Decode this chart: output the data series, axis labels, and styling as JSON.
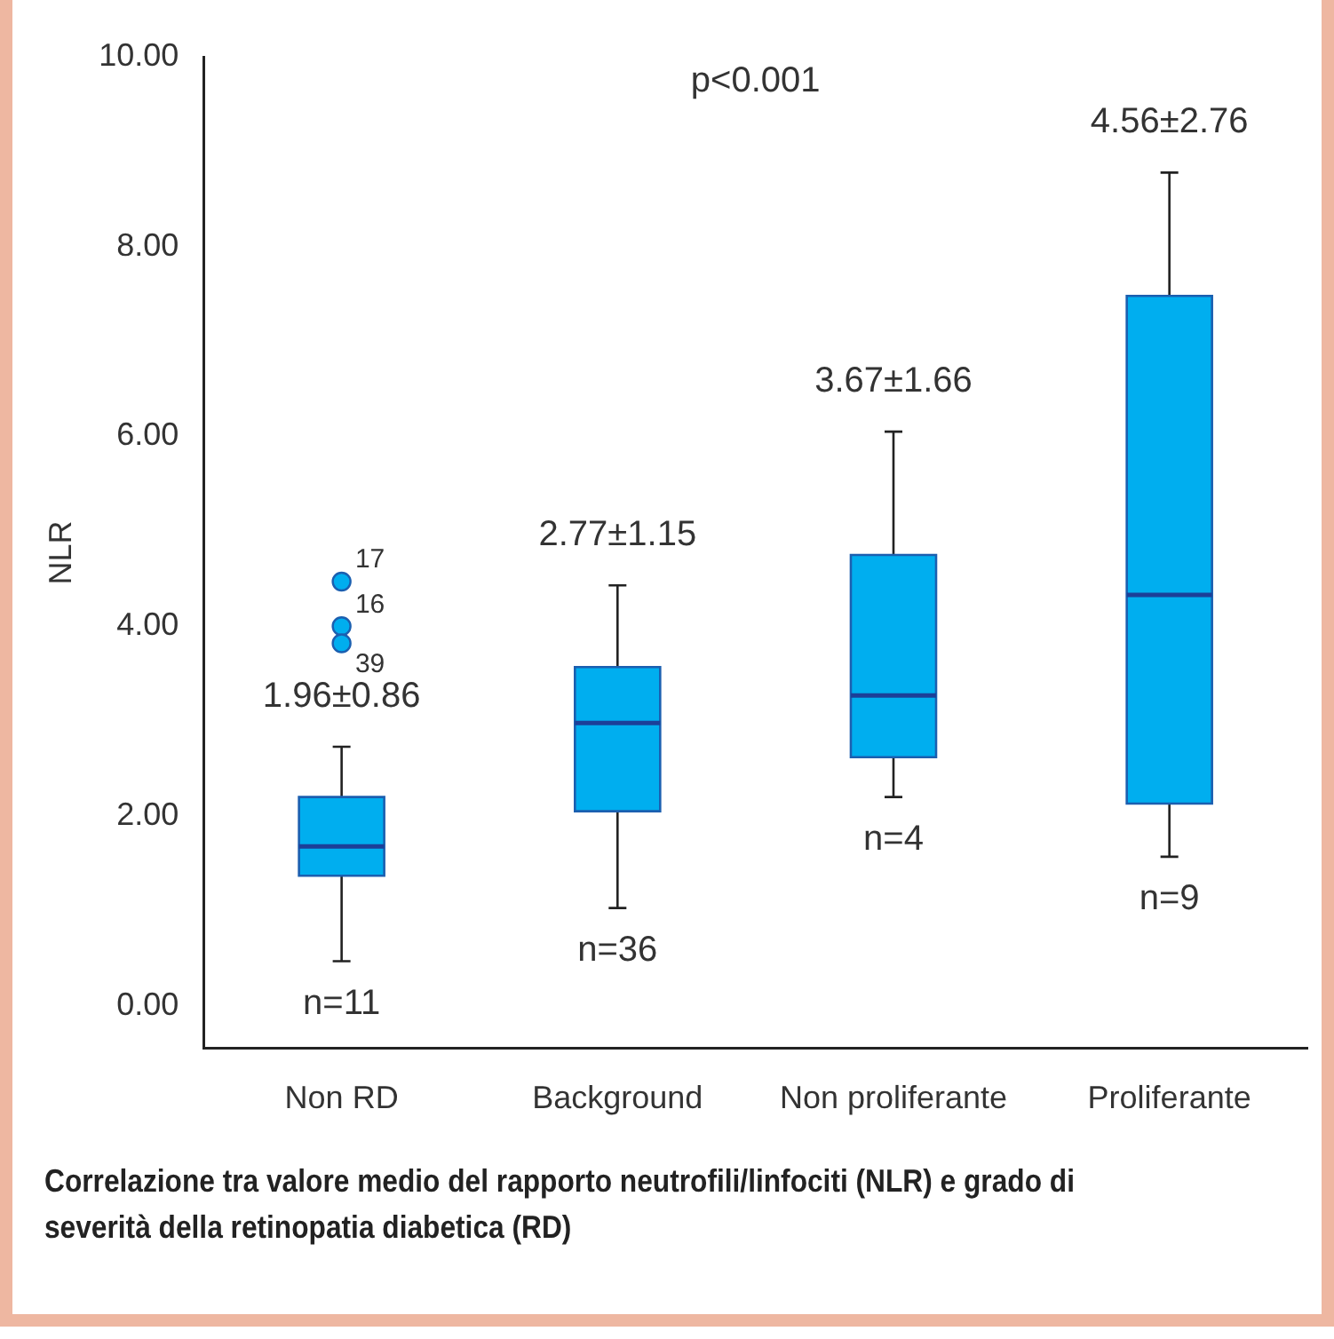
{
  "chart_data": {
    "type": "box",
    "title": "Correlazione tra valore medio del rapporto neutrofili/linfociti (NLR) e grado di severità della retinopatia diabetica (RD)",
    "ylabel": "NLR",
    "categories": [
      "Non RD",
      "Background",
      "Non proliferante",
      "Proliferante"
    ],
    "color": "#00aeef",
    "boxes": [
      {
        "low": 0.47,
        "q1": 1.37,
        "median": 1.68,
        "q3": 2.2,
        "high": 2.73
      },
      {
        "low": 1.03,
        "q1": 2.05,
        "median": 2.98,
        "q3": 3.57,
        "high": 4.43
      },
      {
        "low": 2.2,
        "q1": 2.62,
        "median": 3.27,
        "q3": 4.75,
        "high": 6.05
      },
      {
        "low": 1.57,
        "q1": 2.13,
        "median": 4.33,
        "q3": 7.48,
        "high": 8.78
      }
    ],
    "series": [
      {
        "type": "scatter",
        "color": "#00aeef",
        "x": [
          "Non RD",
          "Non RD",
          "Non RD"
        ],
        "values": [
          4.47,
          4.0,
          3.82
        ]
      }
    ],
    "ylim": [
      -0.45,
      10
    ],
    "yticks": [
      {
        "value": 0,
        "label": "0.00"
      },
      {
        "value": 2,
        "label": "2.00"
      },
      {
        "value": 4,
        "label": "4.00"
      },
      {
        "value": 6,
        "label": "6.00"
      },
      {
        "value": 8,
        "label": "8.00"
      },
      {
        "value": 10,
        "label": "10.00"
      }
    ],
    "grid": false,
    "annotations": [
      "p<0.001",
      {
        "text": "17",
        "x": "Non RD",
        "y": 4.47
      },
      {
        "text": "16",
        "x": "Non RD",
        "y": 4.0
      },
      {
        "text": "39",
        "x": "Non RD",
        "y": 3.82
      },
      {
        "text": "1.96±0.86",
        "x": "Non RD",
        "y": 2.73
      },
      {
        "text": "2.77±1.15",
        "x": "Background",
        "y": 4.43
      },
      {
        "text": "3.67±1.66",
        "x": "Non proliferante",
        "y": 6.05
      },
      {
        "text": "4.56±2.76",
        "x": "Proliferante",
        "y": 8.78
      },
      {
        "text": "n=11",
        "x": "Non RD",
        "y": 0.47
      },
      {
        "text": "n=36",
        "x": "Background",
        "y": 1.03
      },
      {
        "text": "n=4",
        "x": "Non proliferante",
        "y": 2.2
      },
      {
        "text": "n=9",
        "x": "Proliferante",
        "y": 1.57
      }
    ]
  }
}
